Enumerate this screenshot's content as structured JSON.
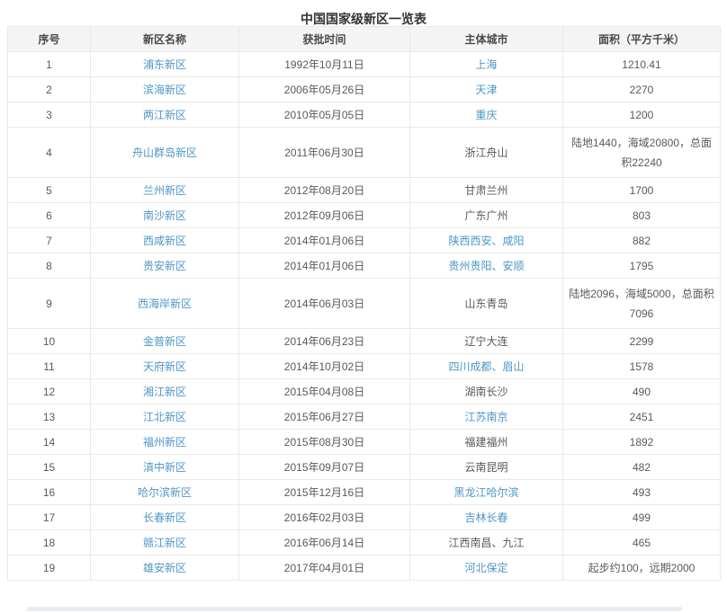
{
  "title": "中国国家级新区一览表",
  "colors": {
    "link": "#4f96c6",
    "header_bg": "#f4f4f4",
    "border": "#e9e9e9",
    "text": "#595959",
    "title_text": "#333333"
  },
  "table": {
    "headers": [
      "序号",
      "新区名称",
      "获批时间",
      "主体城市",
      "面积（平方千米）"
    ],
    "rows": [
      {
        "no": "1",
        "name": "浦东新区",
        "date": "1992年10月11日",
        "city": "上海",
        "city_is_link": true,
        "area": "1210.41",
        "tall": false
      },
      {
        "no": "2",
        "name": "滨海新区",
        "date": "2006年05月26日",
        "city": "天津",
        "city_is_link": true,
        "area": "2270",
        "tall": false
      },
      {
        "no": "3",
        "name": "两江新区",
        "date": "2010年05月05日",
        "city": "重庆",
        "city_is_link": true,
        "area": "1200",
        "tall": false
      },
      {
        "no": "4",
        "name": "舟山群岛新区",
        "date": "2011年06月30日",
        "city": "浙江舟山",
        "city_is_link": false,
        "area": "陆地1440，海域20800，总面积22240",
        "tall": true
      },
      {
        "no": "5",
        "name": "兰州新区",
        "date": "2012年08月20日",
        "city": "甘肃兰州",
        "city_is_link": false,
        "area": "1700",
        "tall": false
      },
      {
        "no": "6",
        "name": "南沙新区",
        "date": "2012年09月06日",
        "city": "广东广州",
        "city_is_link": false,
        "area": "803",
        "tall": false
      },
      {
        "no": "7",
        "name": "西咸新区",
        "date": "2014年01月06日",
        "city": "陕西西安、咸阳",
        "city_is_link": true,
        "area": "882",
        "tall": false
      },
      {
        "no": "8",
        "name": "贵安新区",
        "date": "2014年01月06日",
        "city": "贵州贵阳、安顺",
        "city_is_link": true,
        "area": "1795",
        "tall": false
      },
      {
        "no": "9",
        "name": "西海岸新区",
        "date": "2014年06月03日",
        "city": "山东青岛",
        "city_is_link": false,
        "area": "陆地2096，海域5000，总面积7096",
        "tall": true
      },
      {
        "no": "10",
        "name": "金普新区",
        "date": "2014年06月23日",
        "city": "辽宁大连",
        "city_is_link": false,
        "area": "2299",
        "tall": false
      },
      {
        "no": "11",
        "name": "天府新区",
        "date": "2014年10月02日",
        "city": "四川成都、眉山",
        "city_is_link": true,
        "area": "1578",
        "tall": false
      },
      {
        "no": "12",
        "name": "湘江新区",
        "date": "2015年04月08日",
        "city": "湖南长沙",
        "city_is_link": false,
        "area": "490",
        "tall": false
      },
      {
        "no": "13",
        "name": "江北新区",
        "date": "2015年06月27日",
        "city": "江苏南京",
        "city_is_link": true,
        "area": "2451",
        "tall": false
      },
      {
        "no": "14",
        "name": "福州新区",
        "date": "2015年08月30日",
        "city": "福建福州",
        "city_is_link": false,
        "area": "1892",
        "tall": false
      },
      {
        "no": "15",
        "name": "滇中新区",
        "date": "2015年09月07日",
        "city": "云南昆明",
        "city_is_link": false,
        "area": "482",
        "tall": false
      },
      {
        "no": "16",
        "name": "哈尔滨新区",
        "date": "2015年12月16日",
        "city": "黑龙江哈尔滨",
        "city_is_link": true,
        "area": "493",
        "tall": false
      },
      {
        "no": "17",
        "name": "长春新区",
        "date": "2016年02月03日",
        "city": "吉林长春",
        "city_is_link": true,
        "area": "499",
        "tall": false
      },
      {
        "no": "18",
        "name": "赣江新区",
        "date": "2016年06月14日",
        "city": "江西南昌、九江",
        "city_is_link": false,
        "area": "465",
        "tall": false
      },
      {
        "no": "19",
        "name": "雄安新区",
        "date": "2017年04月01日",
        "city": "河北保定",
        "city_is_link": true,
        "area": "起步约100，远期2000",
        "tall": false
      }
    ]
  }
}
